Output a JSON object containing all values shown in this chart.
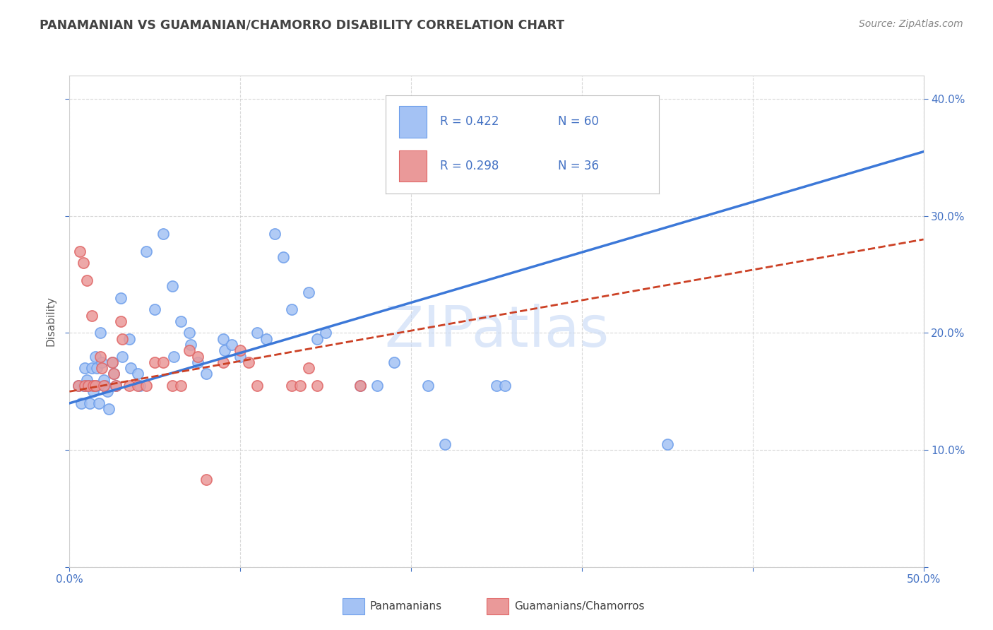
{
  "title": "PANAMANIAN VS GUAMANIAN/CHAMORRO DISABILITY CORRELATION CHART",
  "source": "Source: ZipAtlas.com",
  "ylabel": "Disability",
  "xlim": [
    0.0,
    0.5
  ],
  "ylim": [
    0.0,
    0.42
  ],
  "xticks": [
    0.0,
    0.1,
    0.2,
    0.3,
    0.4,
    0.5
  ],
  "yticks": [
    0.0,
    0.1,
    0.2,
    0.3,
    0.4
  ],
  "xticklabels": [
    "0.0%",
    "",
    "",
    "",
    "",
    "50.0%"
  ],
  "yticklabels_right": [
    "",
    "10.0%",
    "20.0%",
    "30.0%",
    "40.0%"
  ],
  "blue_color": "#a4c2f4",
  "pink_color": "#ea9999",
  "blue_edge_color": "#6d9eeb",
  "pink_edge_color": "#e06666",
  "blue_line_color": "#3c78d8",
  "pink_line_color": "#cc4125",
  "watermark_text": "ZIPatlas",
  "blue_scatter": [
    [
      0.005,
      0.155
    ],
    [
      0.007,
      0.14
    ],
    [
      0.008,
      0.155
    ],
    [
      0.009,
      0.17
    ],
    [
      0.01,
      0.16
    ],
    [
      0.01,
      0.155
    ],
    [
      0.011,
      0.155
    ],
    [
      0.012,
      0.14
    ],
    [
      0.013,
      0.17
    ],
    [
      0.013,
      0.155
    ],
    [
      0.014,
      0.15
    ],
    [
      0.015,
      0.18
    ],
    [
      0.016,
      0.17
    ],
    [
      0.016,
      0.155
    ],
    [
      0.017,
      0.14
    ],
    [
      0.018,
      0.2
    ],
    [
      0.019,
      0.175
    ],
    [
      0.02,
      0.16
    ],
    [
      0.021,
      0.155
    ],
    [
      0.022,
      0.15
    ],
    [
      0.023,
      0.135
    ],
    [
      0.025,
      0.175
    ],
    [
      0.026,
      0.165
    ],
    [
      0.027,
      0.155
    ],
    [
      0.03,
      0.23
    ],
    [
      0.031,
      0.18
    ],
    [
      0.035,
      0.195
    ],
    [
      0.036,
      0.17
    ],
    [
      0.04,
      0.165
    ],
    [
      0.041,
      0.155
    ],
    [
      0.045,
      0.27
    ],
    [
      0.05,
      0.22
    ],
    [
      0.055,
      0.285
    ],
    [
      0.06,
      0.24
    ],
    [
      0.061,
      0.18
    ],
    [
      0.065,
      0.21
    ],
    [
      0.07,
      0.2
    ],
    [
      0.071,
      0.19
    ],
    [
      0.075,
      0.175
    ],
    [
      0.08,
      0.165
    ],
    [
      0.09,
      0.195
    ],
    [
      0.091,
      0.185
    ],
    [
      0.095,
      0.19
    ],
    [
      0.1,
      0.18
    ],
    [
      0.11,
      0.2
    ],
    [
      0.115,
      0.195
    ],
    [
      0.12,
      0.285
    ],
    [
      0.125,
      0.265
    ],
    [
      0.13,
      0.22
    ],
    [
      0.14,
      0.235
    ],
    [
      0.145,
      0.195
    ],
    [
      0.15,
      0.2
    ],
    [
      0.17,
      0.155
    ],
    [
      0.18,
      0.155
    ],
    [
      0.19,
      0.175
    ],
    [
      0.21,
      0.155
    ],
    [
      0.22,
      0.105
    ],
    [
      0.25,
      0.155
    ],
    [
      0.255,
      0.155
    ],
    [
      0.35,
      0.105
    ]
  ],
  "pink_scatter": [
    [
      0.005,
      0.155
    ],
    [
      0.006,
      0.27
    ],
    [
      0.008,
      0.26
    ],
    [
      0.009,
      0.155
    ],
    [
      0.01,
      0.245
    ],
    [
      0.011,
      0.155
    ],
    [
      0.013,
      0.215
    ],
    [
      0.014,
      0.155
    ],
    [
      0.015,
      0.155
    ],
    [
      0.018,
      0.18
    ],
    [
      0.019,
      0.17
    ],
    [
      0.02,
      0.155
    ],
    [
      0.025,
      0.175
    ],
    [
      0.026,
      0.165
    ],
    [
      0.027,
      0.155
    ],
    [
      0.03,
      0.21
    ],
    [
      0.031,
      0.195
    ],
    [
      0.035,
      0.155
    ],
    [
      0.04,
      0.155
    ],
    [
      0.045,
      0.155
    ],
    [
      0.05,
      0.175
    ],
    [
      0.055,
      0.175
    ],
    [
      0.06,
      0.155
    ],
    [
      0.065,
      0.155
    ],
    [
      0.07,
      0.185
    ],
    [
      0.075,
      0.18
    ],
    [
      0.08,
      0.075
    ],
    [
      0.09,
      0.175
    ],
    [
      0.1,
      0.185
    ],
    [
      0.105,
      0.175
    ],
    [
      0.11,
      0.155
    ],
    [
      0.13,
      0.155
    ],
    [
      0.135,
      0.155
    ],
    [
      0.14,
      0.17
    ],
    [
      0.145,
      0.155
    ],
    [
      0.17,
      0.155
    ]
  ],
  "blue_trend_x": [
    0.0,
    0.5
  ],
  "blue_trend_y": [
    0.14,
    0.355
  ],
  "pink_trend_x": [
    0.0,
    0.5
  ],
  "pink_trend_y": [
    0.15,
    0.28
  ],
  "grid_color": "#d0d0d0",
  "bg_color": "#ffffff",
  "title_color": "#434343",
  "tick_color": "#4472c4",
  "source_color": "#888888"
}
